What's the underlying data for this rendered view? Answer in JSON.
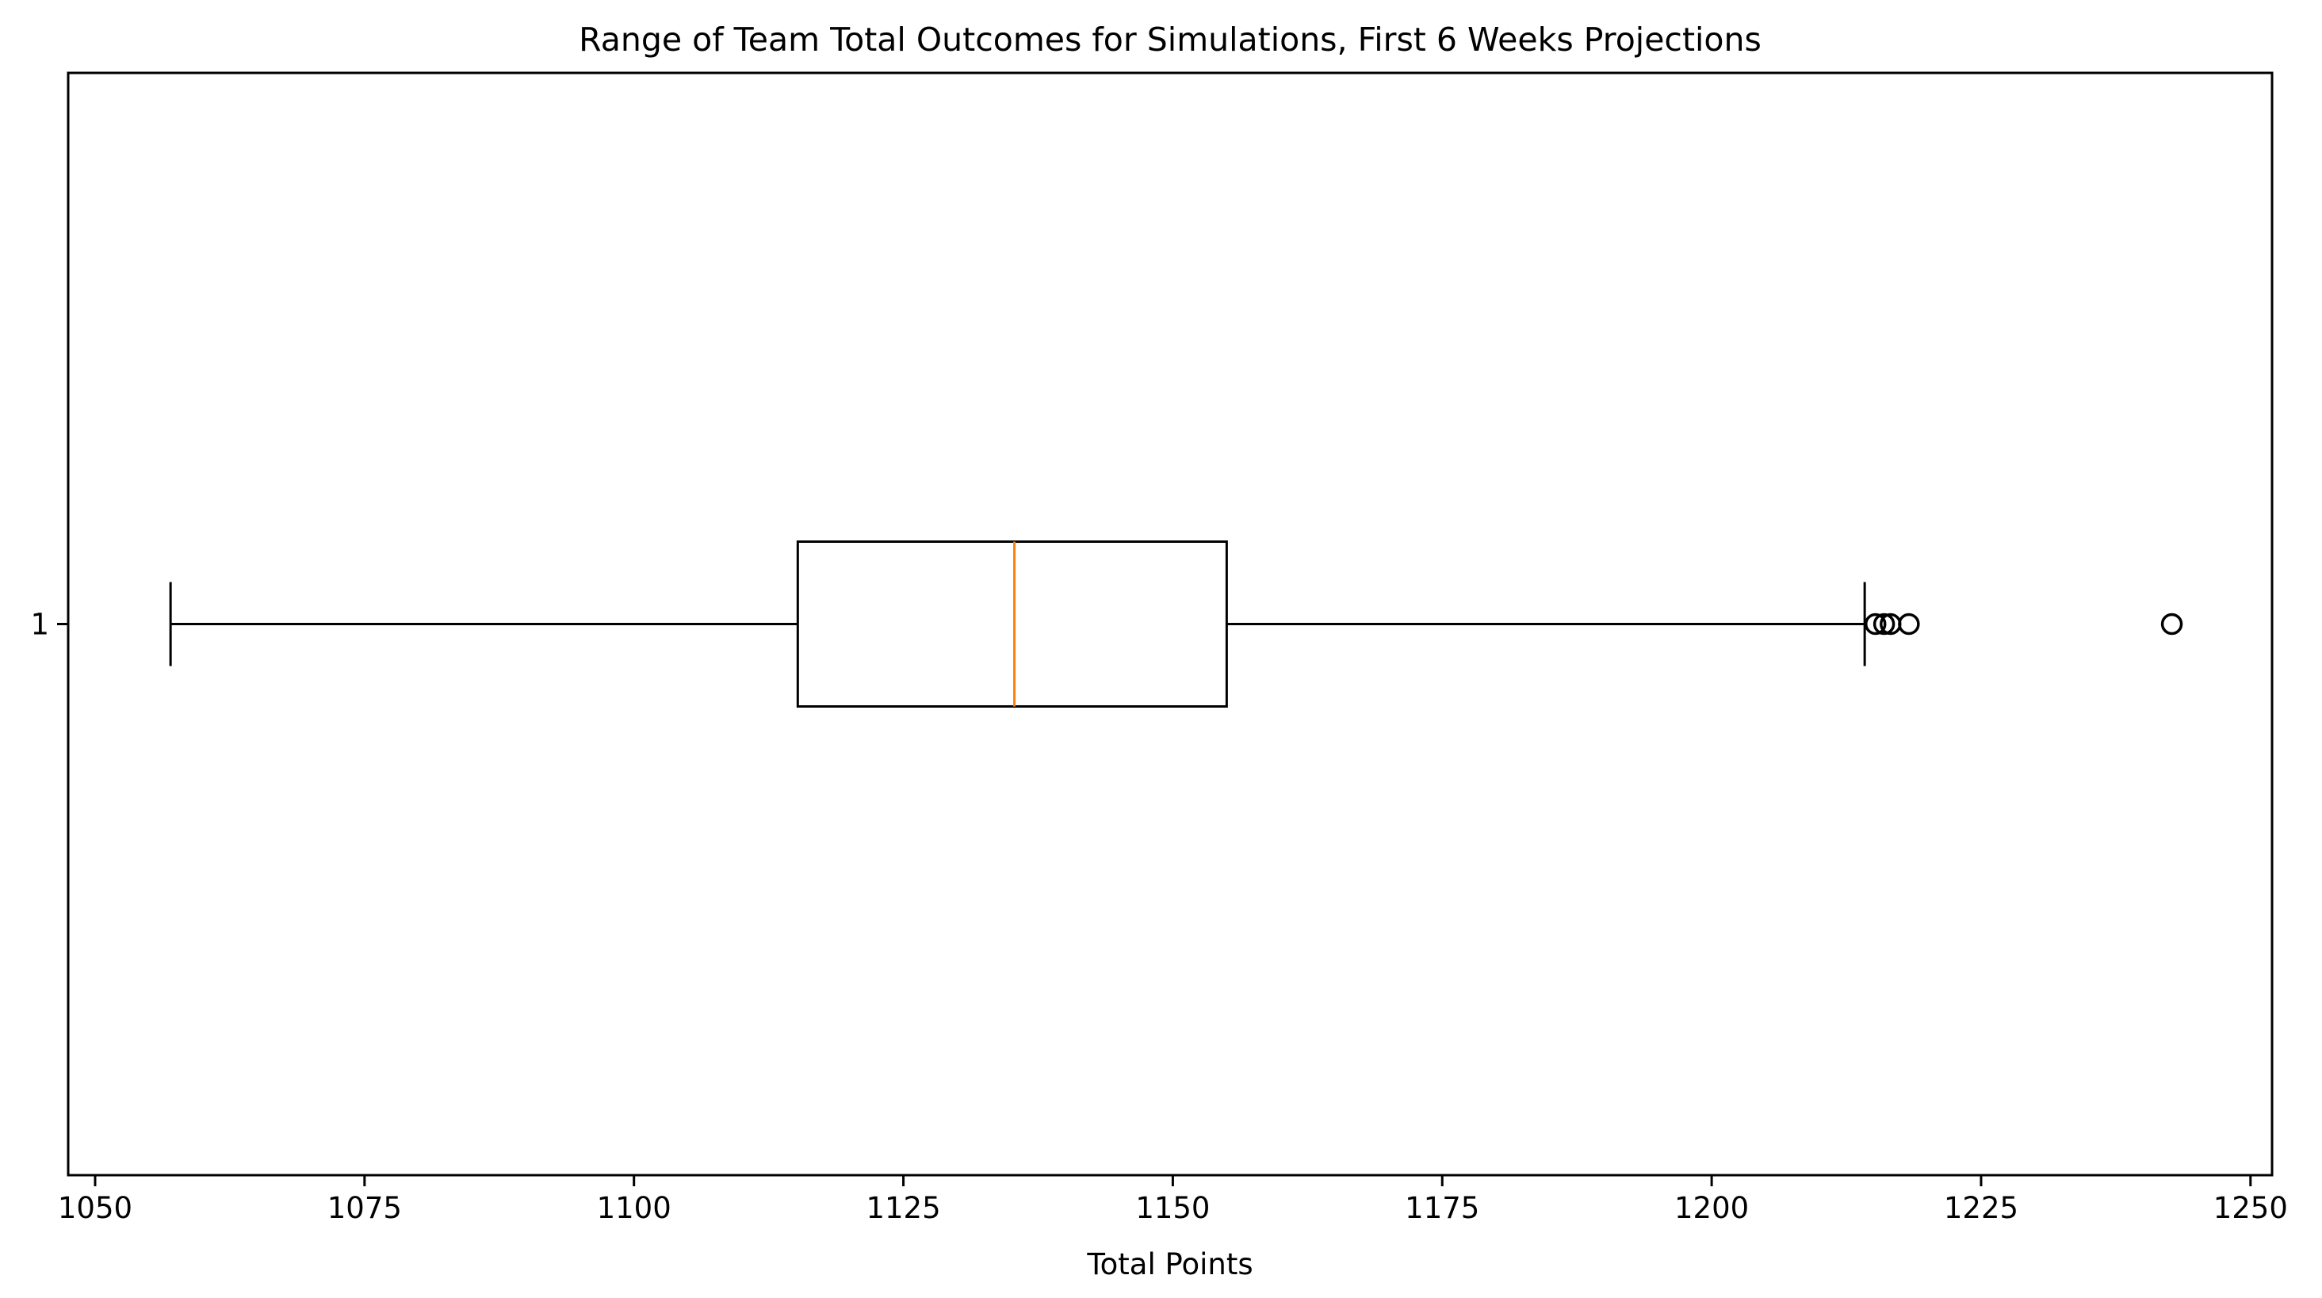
{
  "chart_data": {
    "type": "boxplot",
    "orientation": "horizontal",
    "title": "Range of Team Total Outcomes for Simulations, First 6 Weeks Projections",
    "xlabel": "Total Points",
    "ylabel": "",
    "xlim": [
      1047.5,
      1252
    ],
    "x_ticks": [
      1050,
      1075,
      1100,
      1125,
      1150,
      1175,
      1200,
      1225,
      1250
    ],
    "y_ticks": [
      "1"
    ],
    "grid": false,
    "boxes": [
      {
        "label": "1",
        "whisker_low": 1057,
        "q1": 1115.2,
        "median": 1135.3,
        "q3": 1155,
        "whisker_high": 1214.2,
        "outliers": [
          1215.2,
          1216,
          1216.6,
          1218.3,
          1242.7
        ]
      }
    ],
    "colors": {
      "box": "#000000",
      "median": "#ff7f0e",
      "outlier": "#000000"
    }
  }
}
